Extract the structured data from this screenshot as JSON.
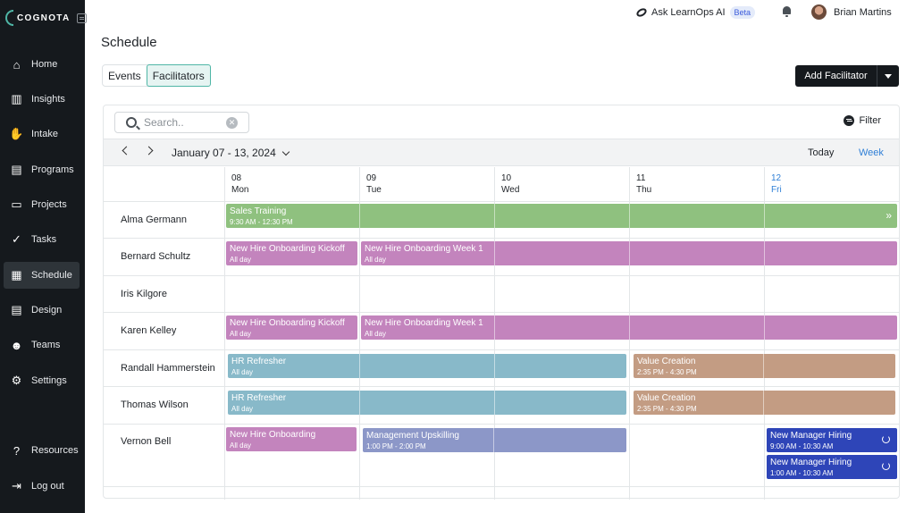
{
  "brand": {
    "name": "COGNOTA"
  },
  "sidebar": {
    "items": [
      {
        "label": "Home",
        "icon": "home-icon",
        "glyph": "⌂"
      },
      {
        "label": "Insights",
        "icon": "insights-icon",
        "glyph": "▥"
      },
      {
        "label": "Intake",
        "icon": "hand-icon",
        "glyph": "✋"
      },
      {
        "label": "Programs",
        "icon": "programs-icon",
        "glyph": "▤"
      },
      {
        "label": "Projects",
        "icon": "projects-icon",
        "glyph": "▭"
      },
      {
        "label": "Tasks",
        "icon": "check-circle-icon",
        "glyph": "✓"
      },
      {
        "label": "Schedule",
        "icon": "calendar-icon",
        "glyph": "▦"
      },
      {
        "label": "Design",
        "icon": "design-icon",
        "glyph": "▤"
      },
      {
        "label": "Teams",
        "icon": "teams-icon",
        "glyph": "☻"
      },
      {
        "label": "Settings",
        "icon": "gear-icon",
        "glyph": "⚙"
      },
      {
        "label": "Resources",
        "icon": "help-icon",
        "glyph": "?"
      },
      {
        "label": "Log out",
        "icon": "logout-icon",
        "glyph": "⇥"
      }
    ],
    "active": "Schedule"
  },
  "topbar": {
    "ask_label": "Ask LearnOps AI",
    "beta_label": "Beta",
    "user_name": "Brian Martins"
  },
  "page": {
    "title": "Schedule",
    "tabs": [
      {
        "label": "Events"
      },
      {
        "label": "Facilitators"
      }
    ],
    "active_tab": "Facilitators",
    "add_button_label": "Add Facilitator"
  },
  "calendar": {
    "search_placeholder": "Search..",
    "filter_label": "Filter",
    "date_range": "January 07 - 13, 2024",
    "today_label": "Today",
    "view_label": "Week",
    "days": [
      {
        "num": "08",
        "name": "Mon"
      },
      {
        "num": "09",
        "name": "Tue"
      },
      {
        "num": "10",
        "name": "Wed"
      },
      {
        "num": "11",
        "name": "Thu"
      },
      {
        "num": "12",
        "name": "Fri"
      }
    ],
    "today_index": 4,
    "facilitators": [
      "Alma Germann",
      "Bernard Schultz",
      "Iris Kilgore",
      "Karen Kelley",
      "Randall Hammerstein",
      "Thomas Wilson",
      "Vernon Bell"
    ],
    "events": [
      {
        "title": "Sales Training",
        "time": "9:30 AM - 12:30 PM",
        "color": "#8fc17f"
      },
      {
        "title": "New Hire Onboarding Kickoff",
        "time": "All day",
        "color": "#c384bd"
      },
      {
        "title": "New Hire Onboarding Week 1",
        "time": "All day",
        "color": "#c384bd"
      },
      {
        "title": "New Hire Onboarding Kickoff",
        "time": "All day",
        "color": "#c384bd"
      },
      {
        "title": "New Hire Onboarding Week 1",
        "time": "All day",
        "color": "#c384bd"
      },
      {
        "title": "HR Refresher",
        "time": "All day",
        "color": "#88b9c9"
      },
      {
        "title": "Value Creation",
        "time": "2:35 PM - 4:30 PM",
        "color": "#c39c83"
      },
      {
        "title": "HR Refresher",
        "time": "All day",
        "color": "#88b9c9"
      },
      {
        "title": "Value Creation",
        "time": "2:35 PM - 4:30 PM",
        "color": "#c39c83"
      },
      {
        "title": "New Hire Onboarding",
        "time": "All day",
        "color": "#c384bd"
      },
      {
        "title": "Management Upskilling",
        "time": "1:00 PM - 2:00 PM",
        "color": "#8c97c8"
      },
      {
        "title": "New Manager Hiring",
        "time": "9:00 AM - 10:30 AM",
        "color": "#2e45b8"
      },
      {
        "title": "New Manager Hiring",
        "time": "1:00 AM - 10:30 AM",
        "color": "#2e45b8"
      }
    ]
  }
}
